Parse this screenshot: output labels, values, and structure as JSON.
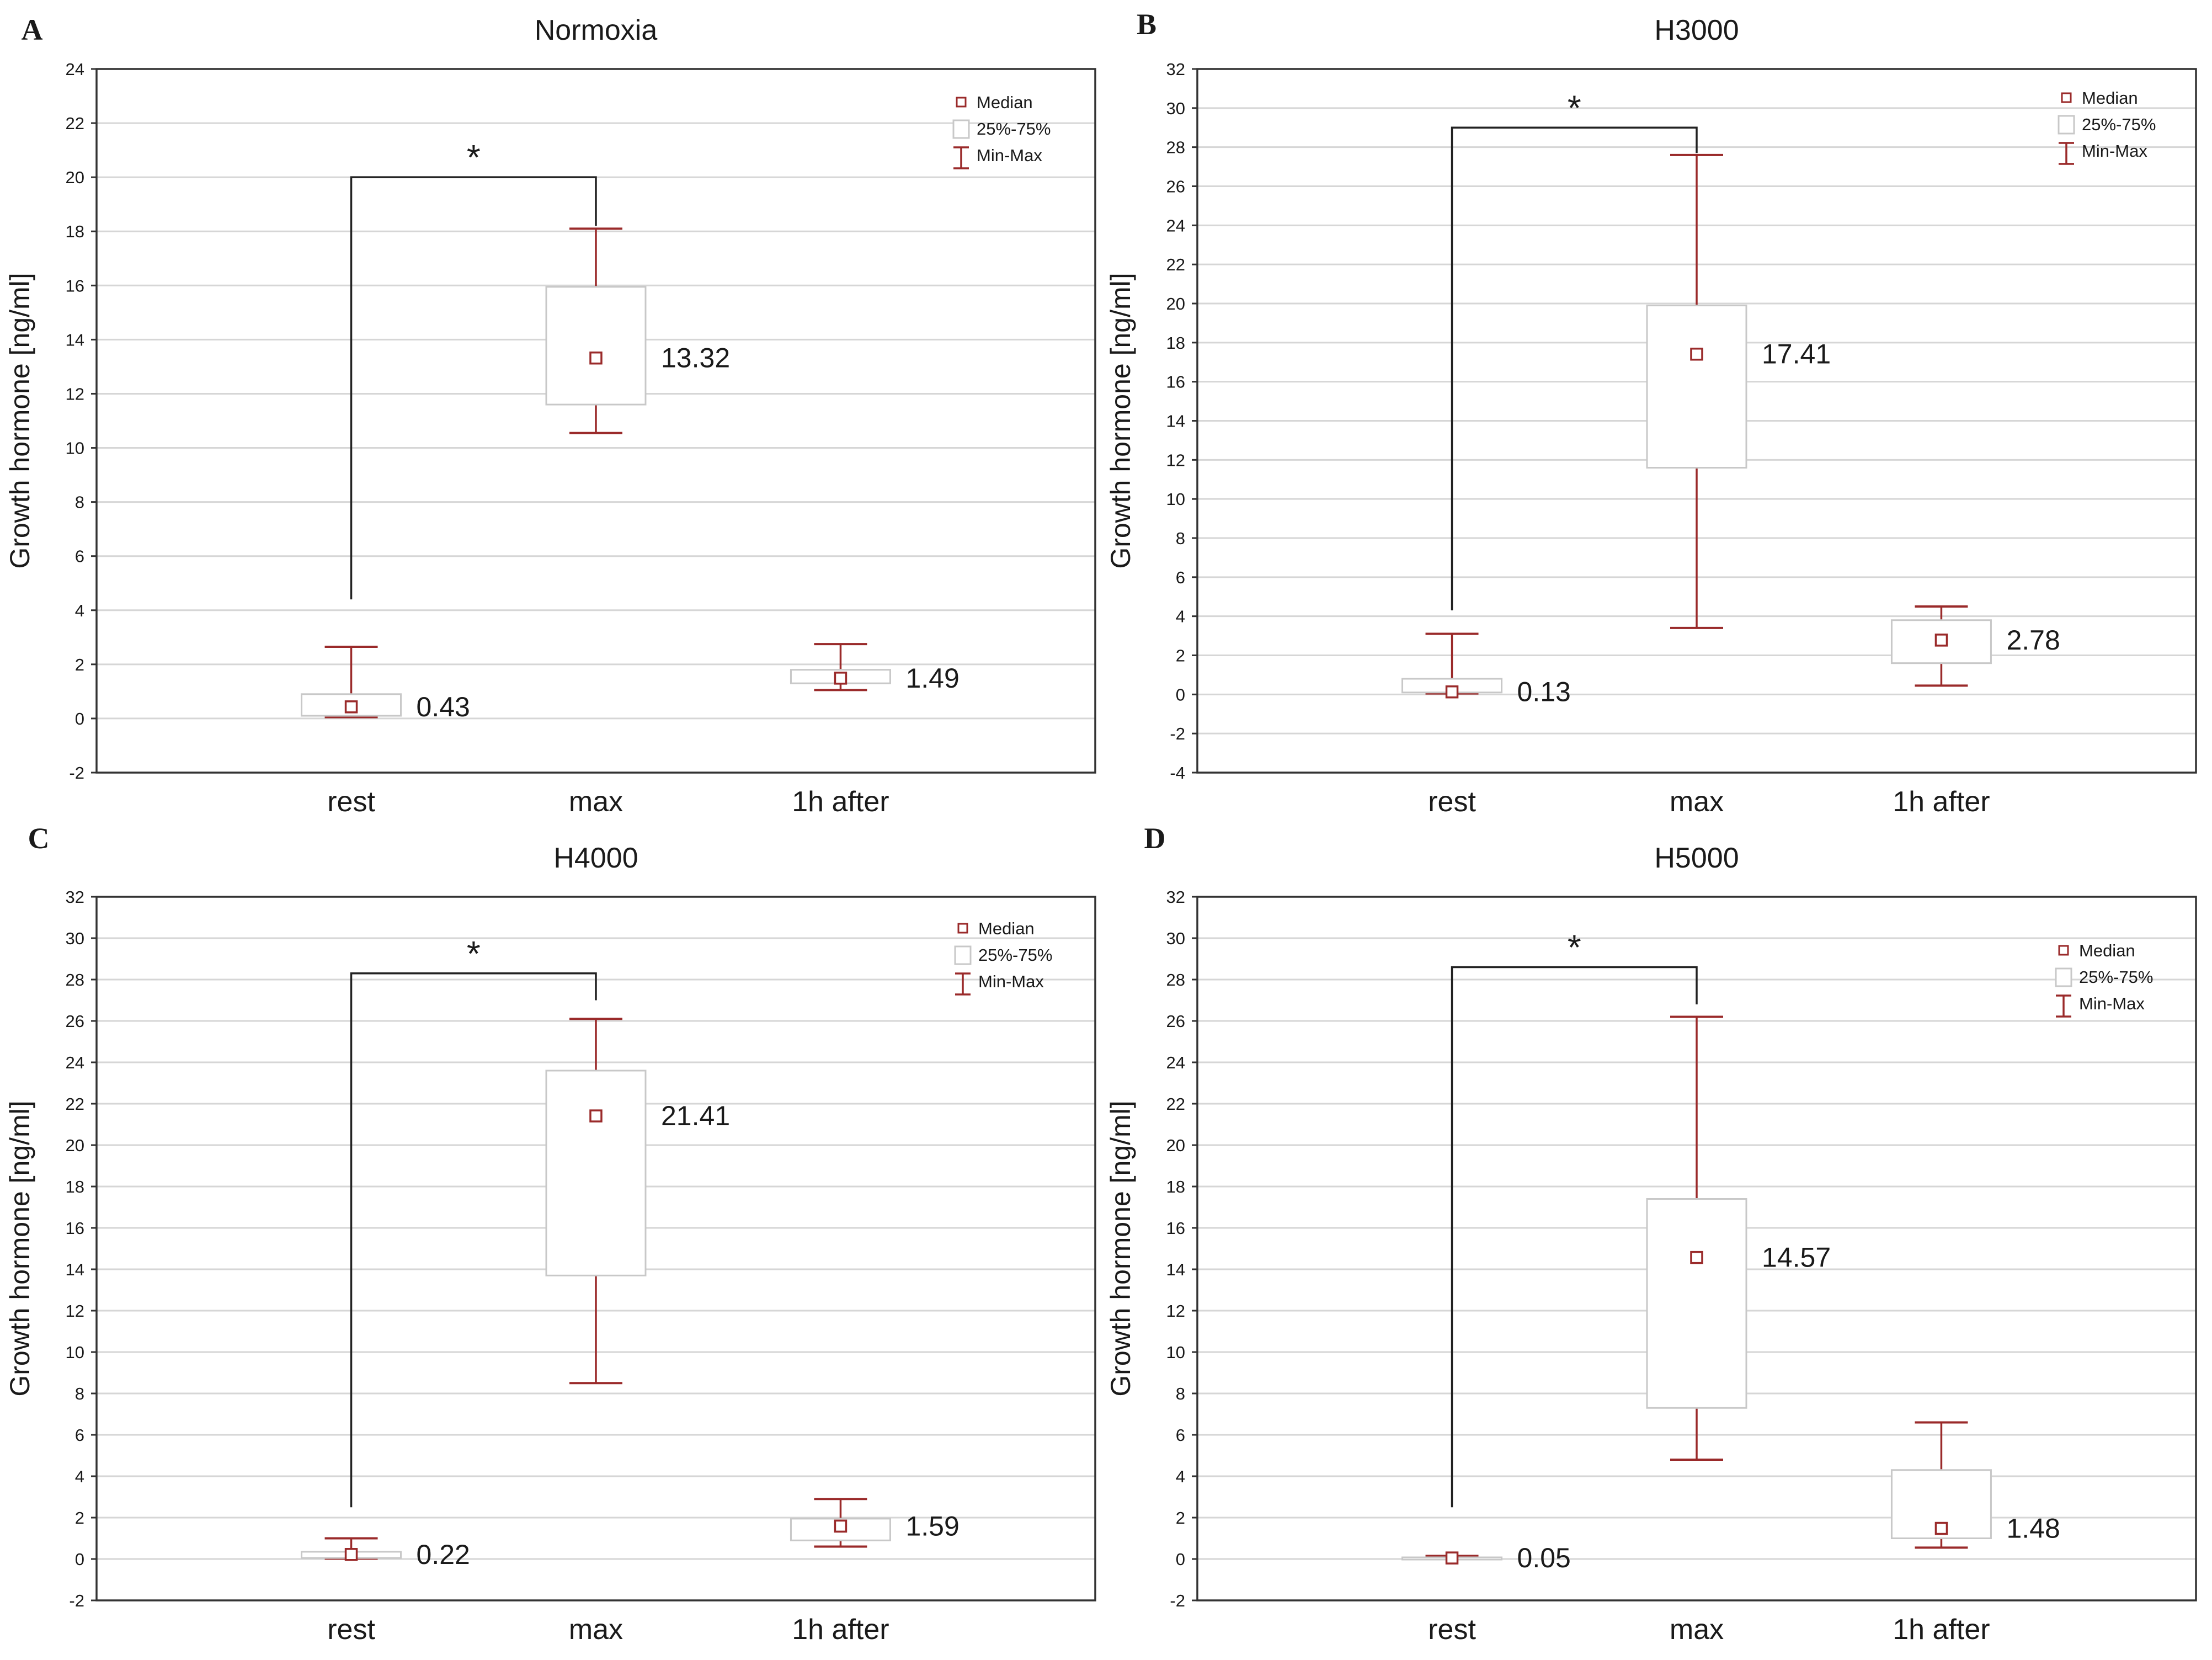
{
  "figure": {
    "y_label": "Growth hormone [ng/ml]"
  },
  "colors": {
    "accent": "#9a2a2a",
    "box_stroke": "#c8c8c8",
    "grid": "#d6d6d6",
    "axis": "#333333",
    "bracket": "#222222"
  },
  "legend": {
    "median": "Median",
    "iqr": "25%-75%",
    "range": "Min-Max"
  },
  "chart_data": [
    {
      "type": "boxplot",
      "panel": "A",
      "title": "Normoxia",
      "ylim": [
        -2,
        24
      ],
      "ytick_step": 2,
      "yticks": [
        "-2",
        "0",
        "2",
        "4",
        "6",
        "8",
        "10",
        "12",
        "14",
        "16",
        "18",
        "20",
        "22",
        "24"
      ],
      "ylabel": "Growth hormone [ng/ml]",
      "categories": [
        "rest",
        "max",
        "1h after"
      ],
      "median": [
        0.43,
        13.32,
        1.49
      ],
      "median_labels": [
        "0.43",
        "13.32",
        "1.49"
      ],
      "q1": [
        0.1,
        11.6,
        1.3
      ],
      "q3": [
        0.9,
        15.95,
        1.8
      ],
      "min": [
        0.05,
        10.55,
        1.05
      ],
      "max": [
        2.65,
        18.1,
        2.75
      ],
      "significance": {
        "from": "rest",
        "to": "max",
        "label": "*",
        "level": 20,
        "left_start": 4.4,
        "right_end": 18.2
      }
    },
    {
      "type": "boxplot",
      "panel": "B",
      "title": "H3000",
      "ylim": [
        -4,
        32
      ],
      "ytick_step": 2,
      "yticks": [
        "-4",
        "-2",
        "0",
        "2",
        "4",
        "6",
        "8",
        "10",
        "12",
        "14",
        "16",
        "18",
        "20",
        "22",
        "24",
        "26",
        "28",
        "30",
        "32"
      ],
      "ylabel": "Growth hormone [ng/ml]",
      "categories": [
        "rest",
        "max",
        "1h after"
      ],
      "median": [
        0.13,
        17.41,
        2.78
      ],
      "median_labels": [
        "0.13",
        "17.41",
        "2.78"
      ],
      "q1": [
        0.1,
        11.6,
        1.6
      ],
      "q3": [
        0.8,
        19.9,
        3.8
      ],
      "min": [
        0.05,
        3.4,
        0.45
      ],
      "max": [
        3.1,
        27.6,
        4.5
      ],
      "significance": {
        "from": "rest",
        "to": "max",
        "label": "*",
        "level": 29,
        "left_start": 4.3,
        "right_end": 27.7
      }
    },
    {
      "type": "boxplot",
      "panel": "C",
      "title": "H4000",
      "ylim": [
        -2,
        32
      ],
      "ytick_step": 2,
      "yticks": [
        "-2",
        "0",
        "2",
        "4",
        "6",
        "8",
        "10",
        "12",
        "14",
        "16",
        "18",
        "20",
        "22",
        "24",
        "26",
        "28",
        "30",
        "32"
      ],
      "ylabel": "Growth hormone [ng/ml]",
      "categories": [
        "rest",
        "max",
        "1h after"
      ],
      "median": [
        0.22,
        21.41,
        1.59
      ],
      "median_labels": [
        "0.22",
        "21.41",
        "1.59"
      ],
      "q1": [
        0.05,
        13.7,
        0.9
      ],
      "q3": [
        0.35,
        23.6,
        1.95
      ],
      "min": [
        0.02,
        8.5,
        0.6
      ],
      "max": [
        1.0,
        26.1,
        2.9
      ],
      "significance": {
        "from": "rest",
        "to": "max",
        "label": "*",
        "level": 28.3,
        "left_start": 2.5,
        "right_end": 27.0
      }
    },
    {
      "type": "boxplot",
      "panel": "D",
      "title": "H5000",
      "ylim": [
        -2,
        32
      ],
      "ytick_step": 2,
      "yticks": [
        "-2",
        "0",
        "2",
        "4",
        "6",
        "8",
        "10",
        "12",
        "14",
        "16",
        "18",
        "20",
        "22",
        "24",
        "26",
        "28",
        "30",
        "32"
      ],
      "ylabel": "Growth hormone [ng/ml]",
      "categories": [
        "rest",
        "max",
        "1h after"
      ],
      "median": [
        0.05,
        14.57,
        1.48
      ],
      "median_labels": [
        "0.05",
        "14.57",
        "1.48"
      ],
      "q1": [
        0.01,
        7.3,
        1.0
      ],
      "q3": [
        0.08,
        17.4,
        4.3
      ],
      "min": [
        0.0,
        4.8,
        0.55
      ],
      "max": [
        0.15,
        26.2,
        6.6
      ],
      "significance": {
        "from": "rest",
        "to": "max",
        "label": "*",
        "level": 28.6,
        "left_start": 2.5,
        "right_end": 26.8
      }
    }
  ]
}
